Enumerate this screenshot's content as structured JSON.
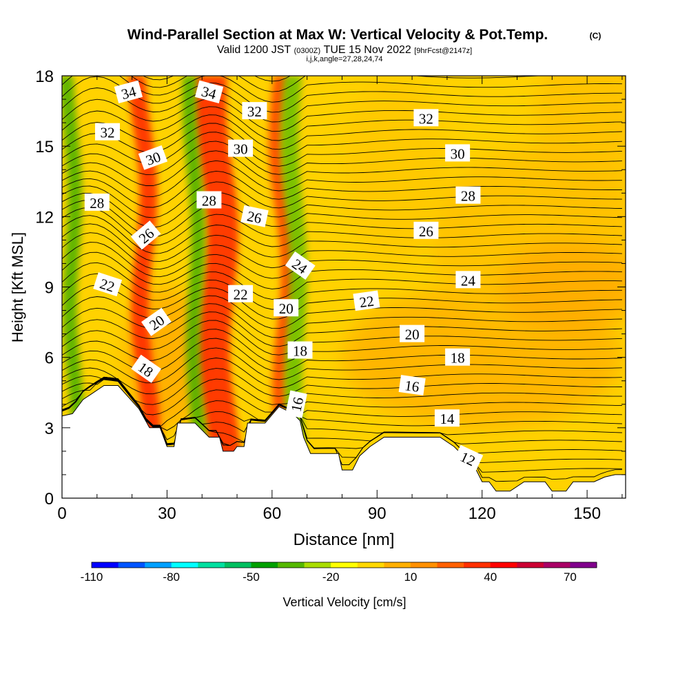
{
  "chart_data": {
    "type": "contour",
    "title": "Wind-Parallel Section at Max W: Vertical Velocity & Pot.Temp.",
    "title_mark": "(C)",
    "subtitle_valid": "Valid 1200 JST",
    "subtitle_zulu": "(0300Z)",
    "subtitle_date": "TUE 15 Nov 2022",
    "subtitle_fcst": "[9hrFcst@2147z]",
    "subtitle_grid": "i,j,k,angle=27,28,24,74",
    "xlabel": "Distance [nm]",
    "ylabel": "Height [Kft MSL]",
    "xlim": [
      0,
      161
    ],
    "ylim": [
      0,
      18
    ],
    "x_ticks": [
      "0",
      "30",
      "60",
      "90",
      "120",
      "150"
    ],
    "y_ticks": [
      "0",
      "3",
      "6",
      "9",
      "12",
      "15",
      "18"
    ],
    "colorbar": {
      "label": "Vertical Velocity [cm/s]",
      "min": -110,
      "max": 80,
      "step": 10,
      "tick_labels": [
        "-110",
        "-80",
        "-50",
        "-20",
        "10",
        "40",
        "70"
      ],
      "colors": [
        "#0000ff",
        "#0055ff",
        "#00a0ff",
        "#00ffff",
        "#00e0a0",
        "#00c060",
        "#00a000",
        "#55b800",
        "#aadd00",
        "#ffff00",
        "#ffd800",
        "#ffb000",
        "#ff9000",
        "#ff6000",
        "#ff3000",
        "#ff0000",
        "#cc0033",
        "#aa0066",
        "#80008c"
      ]
    },
    "terrain_kft": [
      [
        0,
        3.5
      ],
      [
        3,
        3.6
      ],
      [
        6,
        4.2
      ],
      [
        12,
        4.8
      ],
      [
        16,
        4.8
      ],
      [
        22,
        3.8
      ],
      [
        25,
        3.0
      ],
      [
        28,
        3.0
      ],
      [
        30,
        2.2
      ],
      [
        32,
        2.2
      ],
      [
        33,
        3.2
      ],
      [
        38,
        3.2
      ],
      [
        42,
        2.6
      ],
      [
        45,
        2.6
      ],
      [
        46,
        2.0
      ],
      [
        49,
        2.0
      ],
      [
        50,
        2.2
      ],
      [
        52,
        2.2
      ],
      [
        53,
        3.2
      ],
      [
        58,
        3.2
      ],
      [
        62,
        3.9
      ],
      [
        66,
        3.6
      ],
      [
        68,
        3.3
      ],
      [
        69,
        2.6
      ],
      [
        71,
        1.9
      ],
      [
        75,
        1.9
      ],
      [
        79,
        1.9
      ],
      [
        80,
        1.2
      ],
      [
        83,
        1.2
      ],
      [
        85,
        1.8
      ],
      [
        88,
        2.2
      ],
      [
        92,
        2.6
      ],
      [
        102,
        2.6
      ],
      [
        108,
        2.6
      ],
      [
        112,
        2.2
      ],
      [
        118,
        1.3
      ],
      [
        120,
        0.7
      ],
      [
        122,
        0.7
      ],
      [
        124,
        0.3
      ],
      [
        128,
        0.3
      ],
      [
        132,
        0.7
      ],
      [
        138,
        0.7
      ],
      [
        140,
        0.3
      ],
      [
        144,
        0.3
      ],
      [
        146,
        0.7
      ],
      [
        152,
        0.7
      ],
      [
        155,
        0.9
      ],
      [
        158,
        1.0
      ],
      [
        161,
        1.0
      ]
    ],
    "updraft_bands": [
      {
        "x0": 22,
        "x1": 27,
        "color": "#ff2000"
      },
      {
        "x0": 41,
        "x1": 50,
        "color": "#ff2000"
      },
      {
        "x0": 62,
        "x1": 66,
        "color": "#ff4000"
      }
    ],
    "downdraft_bands": [
      {
        "x0": 2,
        "x1": 6,
        "color": "#44b000"
      },
      {
        "x0": 37,
        "x1": 41,
        "color": "#44b000"
      },
      {
        "x0": 65,
        "x1": 70,
        "color": "#66c000"
      }
    ],
    "contour_labels": [
      {
        "text": "34",
        "x": 19,
        "y": 17.3,
        "rot": -15
      },
      {
        "text": "34",
        "x": 42,
        "y": 17.3,
        "rot": 15
      },
      {
        "text": "32",
        "x": 13,
        "y": 15.6,
        "rot": 0
      },
      {
        "text": "32",
        "x": 55,
        "y": 16.5,
        "rot": 0
      },
      {
        "text": "32",
        "x": 104,
        "y": 16.2,
        "rot": 0
      },
      {
        "text": "30",
        "x": 26,
        "y": 14.5,
        "rot": -20
      },
      {
        "text": "30",
        "x": 51,
        "y": 14.9,
        "rot": 0
      },
      {
        "text": "30",
        "x": 113,
        "y": 14.7,
        "rot": 0
      },
      {
        "text": "28",
        "x": 10,
        "y": 12.6,
        "rot": 0
      },
      {
        "text": "28",
        "x": 42,
        "y": 12.7,
        "rot": 0
      },
      {
        "text": "28",
        "x": 116,
        "y": 12.9,
        "rot": 0
      },
      {
        "text": "26",
        "x": 24,
        "y": 11.2,
        "rot": -40
      },
      {
        "text": "26",
        "x": 55,
        "y": 12.0,
        "rot": 12
      },
      {
        "text": "26",
        "x": 104,
        "y": 11.4,
        "rot": 0
      },
      {
        "text": "24",
        "x": 68,
        "y": 9.9,
        "rot": 35
      },
      {
        "text": "24",
        "x": 116,
        "y": 9.3,
        "rot": 0
      },
      {
        "text": "22",
        "x": 13,
        "y": 9.1,
        "rot": 18
      },
      {
        "text": "22",
        "x": 51,
        "y": 8.7,
        "rot": 0
      },
      {
        "text": "22",
        "x": 87,
        "y": 8.4,
        "rot": -8
      },
      {
        "text": "20",
        "x": 27,
        "y": 7.5,
        "rot": -35
      },
      {
        "text": "20",
        "x": 64,
        "y": 8.1,
        "rot": 0
      },
      {
        "text": "20",
        "x": 100,
        "y": 7.0,
        "rot": 0
      },
      {
        "text": "18",
        "x": 24,
        "y": 5.5,
        "rot": 35
      },
      {
        "text": "18",
        "x": 68,
        "y": 6.3,
        "rot": 0
      },
      {
        "text": "18",
        "x": 113,
        "y": 6.0,
        "rot": 0
      },
      {
        "text": "16",
        "x": 67,
        "y": 4.0,
        "rot": -78
      },
      {
        "text": "16",
        "x": 100,
        "y": 4.8,
        "rot": 8
      },
      {
        "text": "14",
        "x": 110,
        "y": 3.4,
        "rot": 0
      },
      {
        "text": "12",
        "x": 116,
        "y": 1.7,
        "rot": 25
      }
    ]
  }
}
